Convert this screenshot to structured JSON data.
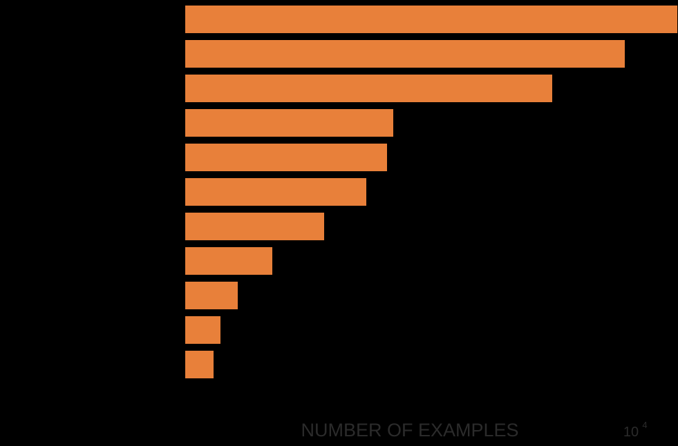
{
  "chart_data": {
    "type": "bar",
    "orientation": "horizontal",
    "bar_color": "#E8803A",
    "background_color": "#000000",
    "label_color": "#2B2B2B",
    "xlabel": "NUMBER OF EXAMPLES",
    "x_scale_multiplier": "10",
    "x_scale_exponent": "4",
    "values": [
      7.12,
      6.36,
      5.31,
      3.01,
      2.92,
      2.62,
      2.01,
      1.26,
      0.76,
      0.51,
      0.41
    ],
    "xlim": [
      0,
      7.12
    ],
    "grid": false,
    "legend": "none"
  }
}
